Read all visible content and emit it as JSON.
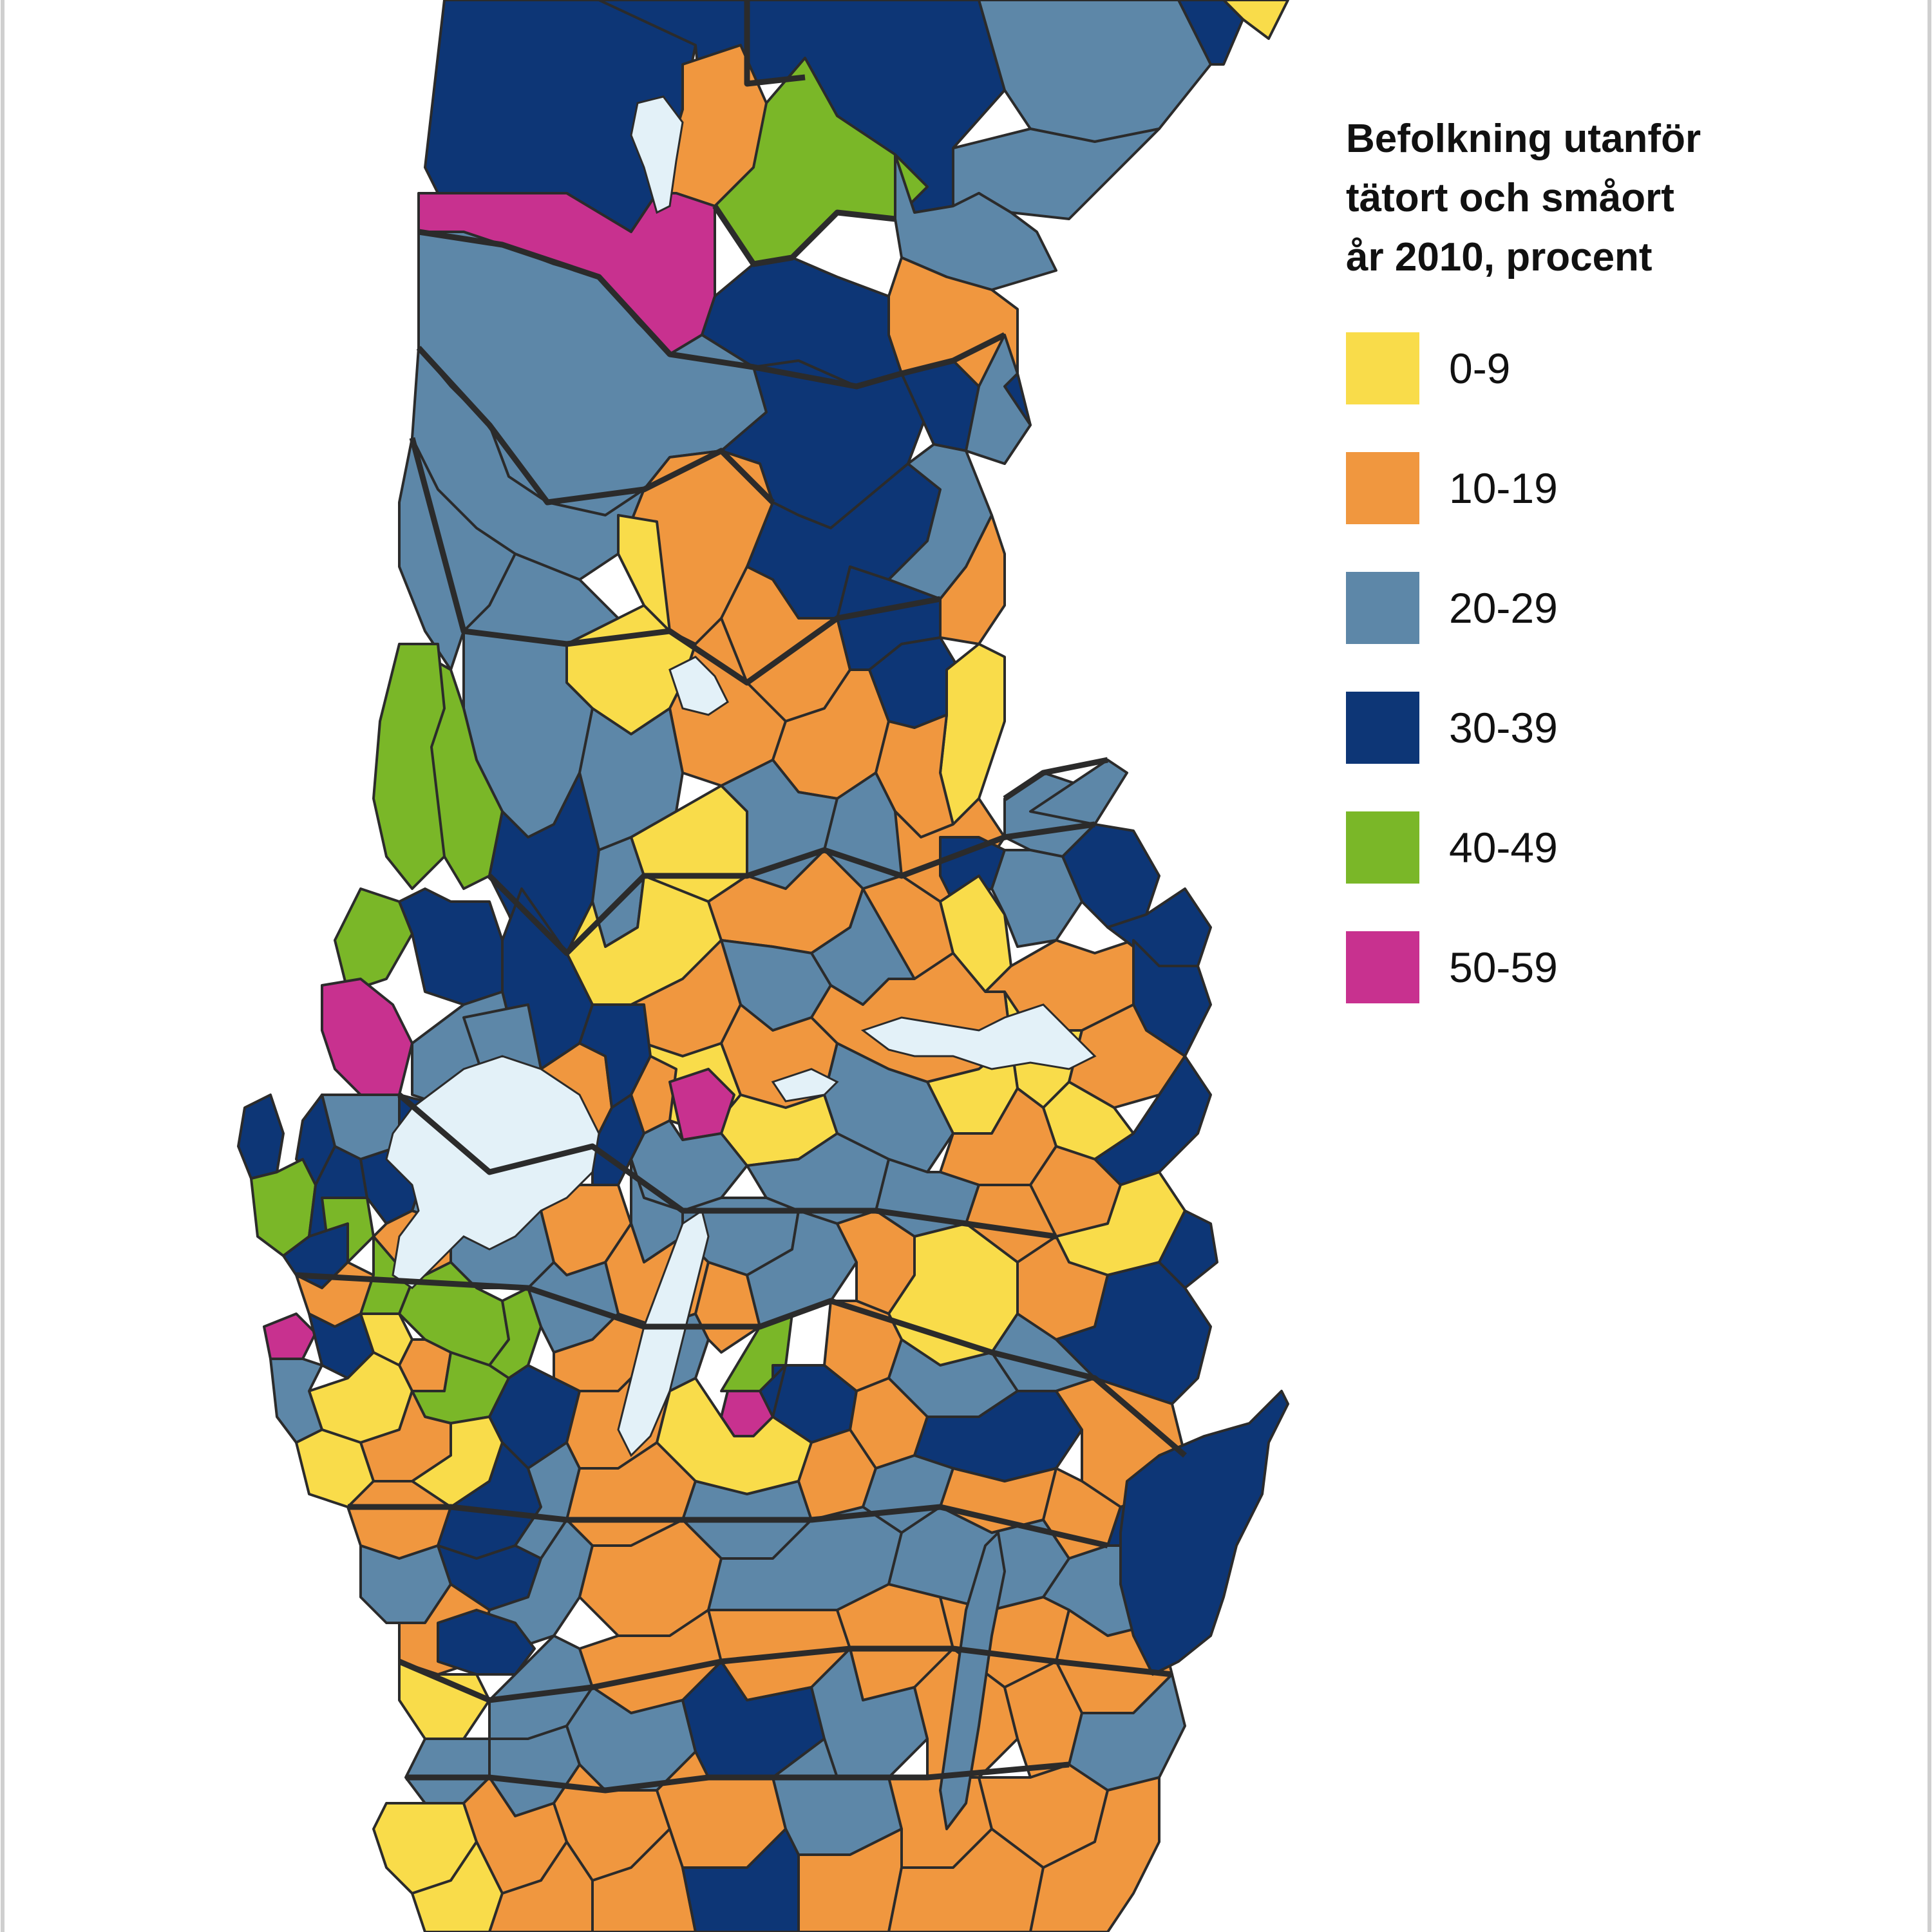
{
  "legend": {
    "title_lines": [
      "Befolkning utanför",
      "tätort och småort",
      "år 2010, procent"
    ],
    "items": [
      {
        "label": "0-9",
        "color": "#f9dc4a"
      },
      {
        "label": "10-19",
        "color": "#f0973f"
      },
      {
        "label": "20-29",
        "color": "#5d87a8"
      },
      {
        "label": "30-39",
        "color": "#0d3676"
      },
      {
        "label": "40-49",
        "color": "#7ab728"
      },
      {
        "label": "50-59",
        "color": "#c8318f"
      }
    ]
  },
  "colors": {
    "water": "#e3f1f8",
    "border": "#2b2b2b",
    "background": "#ffffff"
  }
}
